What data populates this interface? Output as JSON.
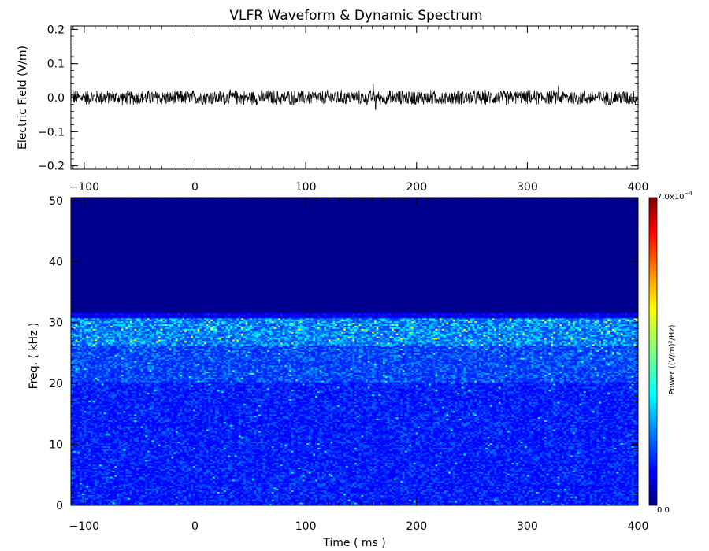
{
  "title": "VLFR Waveform & Dynamic Spectrum",
  "chart_data": [
    {
      "type": "line",
      "name": "waveform",
      "ylabel": "Electric Field  (V/m)",
      "xlabel": "",
      "xlim": [
        -112,
        400
      ],
      "ylim": [
        -0.21,
        0.21
      ],
      "x_ticks": [
        -100,
        0,
        100,
        200,
        300,
        400
      ],
      "x_tick_labels": [
        "−100",
        "0",
        "100",
        "200",
        "300",
        "400"
      ],
      "y_ticks": [
        -0.2,
        -0.1,
        0.0,
        0.1,
        0.2
      ],
      "y_tick_labels": [
        "−0.2",
        "−0.1",
        "0.0",
        "0.1",
        "0.2"
      ],
      "series": [
        {
          "description_values": "noise band centred on 0.0 V/m, peak amplitude approx ±0.03 V/m, occasional spikes to ±0.04 V/m",
          "mean": 0.0,
          "amplitude": 0.025,
          "spikes": [
            [
              161,
              0.04
            ],
            [
              163,
              -0.035
            ],
            [
              328,
              0.035
            ]
          ]
        }
      ],
      "grid": false,
      "color": "#000000"
    },
    {
      "type": "heatmap",
      "name": "dynamic-spectrum",
      "xlabel": "Time ( ms )",
      "ylabel": "Freq. ( kHz )",
      "xlim": [
        -112,
        400
      ],
      "ylim": [
        0,
        50.5
      ],
      "x_ticks": [
        -100,
        0,
        100,
        200,
        300,
        400
      ],
      "x_tick_labels": [
        "−100",
        "0",
        "100",
        "200",
        "300",
        "400"
      ],
      "y_ticks": [
        0,
        10,
        20,
        30,
        40,
        50
      ],
      "y_tick_labels": [
        "0",
        "10",
        "20",
        "30",
        "40",
        "50"
      ],
      "colormap": "jet",
      "colorbar": {
        "label": "Power  ((V/m)²/Hz)",
        "min_label": "0.0",
        "max_label_mantissa": "7.0x10",
        "max_label_exponent": "−4",
        "min": 0.0,
        "max": 0.0007
      },
      "bands": [
        {
          "freq_from": 31.5,
          "freq_to": 50.5,
          "level": 0.0
        },
        {
          "freq_from": 24,
          "freq_to": 31.5,
          "level": "high, bright cyan/yellow speckles near 27–29 kHz"
        },
        {
          "freq_from": 0,
          "freq_to": 24,
          "level": "low, blue speckle with scattered cyan points"
        }
      ],
      "grid": false
    }
  ],
  "colors": {
    "background": "#ffffff",
    "axes": "#000000",
    "spectrum_floor": "#00008f"
  }
}
